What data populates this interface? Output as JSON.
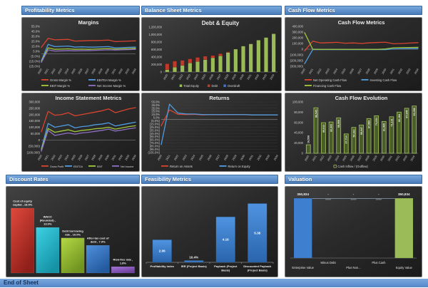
{
  "sections": {
    "profitability": {
      "title": "Profitability Metrics"
    },
    "balance": {
      "title": "Balance Sheet Metrics"
    },
    "cashflow": {
      "title": "Cash Flow Metrics"
    },
    "discount": {
      "title": "Discount Rates"
    },
    "feasibility": {
      "title": "Feasibility Metrics"
    },
    "valuation": {
      "title": "Valuation"
    }
  },
  "footer": {
    "label": "End of Sheet"
  },
  "colors": {
    "header_blue": "#4a7cba",
    "footer_blue": "#5586c7",
    "panel_bg": "#2b2b2b",
    "series_red": "#d9442f",
    "series_blue": "#4f9ce0",
    "series_green": "#9bbb59",
    "series_purple": "#8f6fc4"
  },
  "chart_data": [
    {
      "id": "margins",
      "type": "line",
      "title": "Margins",
      "x": [
        "2020",
        "2021",
        "2022",
        "2023",
        "2024",
        "2025",
        "2026",
        "2027",
        "2028",
        "2029",
        "2030",
        "2031",
        "2032",
        "2033",
        "2034"
      ],
      "yticks": [
        "55.0%",
        "45.0%",
        "35.0%",
        "25.0%",
        "15.0%",
        "5.0%",
        "(5.0%)",
        "(15.0%)",
        "(25.0%)"
      ],
      "ymax": 55,
      "ymin": -25,
      "legend_cols": 2,
      "series": [
        {
          "name": "Gross Margin %",
          "color": "#d9442f",
          "values": [
            13,
            31,
            28,
            28.5,
            29,
            25.5,
            26,
            26.5,
            26.5,
            27,
            27.5,
            24.5,
            25,
            25.5,
            26
          ]
        },
        {
          "name": "EBITDA Margin %",
          "color": "#4f9ce0",
          "values": [
            -14,
            19,
            14.5,
            15,
            15.5,
            13.5,
            14,
            13.5,
            13.5,
            14,
            14.5,
            12,
            12.5,
            13,
            13.5
          ]
        },
        {
          "name": "EBIT Margin %",
          "color": "#a2c83c",
          "values": [
            -16,
            12,
            9,
            9.5,
            10,
            9,
            9.5,
            9,
            9.5,
            10,
            10.5,
            9.5,
            10,
            10.5,
            11
          ]
        },
        {
          "name": "Net Income Margin %",
          "color": "#8f6fc4",
          "values": [
            -17,
            8,
            5.5,
            6,
            6.5,
            6,
            6.5,
            6.5,
            7,
            7.5,
            8,
            7.5,
            8,
            8.5,
            9
          ]
        }
      ]
    },
    {
      "id": "debt_equity",
      "type": "stacked-bar",
      "title": "Debt & Equity",
      "x": [
        "2020",
        "2021",
        "2022",
        "2023",
        "2024",
        "2025",
        "2026",
        "2027",
        "2028",
        "2029",
        "2030",
        "2031",
        "2032",
        "2033",
        "2034"
      ],
      "yticks": [
        "1,200,000",
        "1,000,000",
        "800,000",
        "600,000",
        "400,000",
        "200,000",
        "0"
      ],
      "ymax": 1200000,
      "ymin": 0,
      "series": [
        {
          "name": "Total Equity",
          "color": "#9bbb59",
          "values": [
            60000,
            130000,
            175000,
            240000,
            280000,
            330000,
            380000,
            430000,
            520000,
            610000,
            690000,
            750000,
            850000,
            920000,
            1020000
          ]
        },
        {
          "name": "Debt",
          "color": "#c0392b",
          "values": [
            160000,
            160000,
            135000,
            110000,
            110000,
            90000,
            60000,
            60000,
            20000,
            0,
            0,
            0,
            0,
            0,
            0
          ]
        },
        {
          "name": "Overdraft",
          "color": "#4472c4",
          "values": [
            0,
            0,
            0,
            0,
            0,
            0,
            0,
            0,
            0,
            0,
            0,
            0,
            0,
            0,
            0
          ]
        }
      ]
    },
    {
      "id": "cfm",
      "type": "line",
      "title": "Cash Flow Metrics",
      "x": [
        "2020",
        "2021",
        "2022",
        "2023",
        "2024",
        "2025",
        "2026",
        "2027",
        "2028",
        "2029",
        "2030",
        "2031",
        "2032",
        "2033",
        "2034"
      ],
      "yticks": [
        "400,000",
        "300,000",
        "200,000",
        "100,000",
        "0",
        "(100,000)",
        "(200,000)",
        "(300,000)"
      ],
      "ymax": 400000,
      "ymin": -300000,
      "legend_cols": 2,
      "series": [
        {
          "name": "Net Operating Cash Flow",
          "color": "#d9442f",
          "values": [
            -30000,
            140000,
            110000,
            115000,
            120000,
            105000,
            110000,
            100000,
            112000,
            118000,
            122000,
            95000,
            100000,
            108000,
            115000
          ]
        },
        {
          "name": "Investing Cash Flow",
          "color": "#4f9ce0",
          "values": [
            -255000,
            -8000,
            -8000,
            -8000,
            -8000,
            -8000,
            -8000,
            -8000,
            -8000,
            -8000,
            -8000,
            5000,
            8000,
            10000,
            12000
          ]
        },
        {
          "name": "Financing Cash Flow",
          "color": "#a2c83c",
          "values": [
            290000,
            0,
            -3000,
            -3000,
            -3000,
            -3000,
            -3000,
            -3000,
            -3000,
            -3000,
            5000,
            25000,
            28000,
            30000,
            32000
          ]
        }
      ]
    },
    {
      "id": "income",
      "type": "line",
      "title": "Income Statement Metrics",
      "x": [
        "2020",
        "2021",
        "2022",
        "2023",
        "2024",
        "2025",
        "2026",
        "2027",
        "2028",
        "2029",
        "2030",
        "2031",
        "2032",
        "2033",
        "2034"
      ],
      "yticks": [
        "300,000",
        "250,000",
        "200,000",
        "150,000",
        "100,000",
        "50,000",
        "0",
        "(50,000)",
        "(100,000)"
      ],
      "ymax": 300000,
      "ymin": -100000,
      "legend_cols": 4,
      "series": [
        {
          "name": "Gross Profit",
          "color": "#d9442f",
          "values": [
            65000,
            225000,
            195000,
            200000,
            215000,
            190000,
            200000,
            210000,
            220000,
            230000,
            245000,
            215000,
            230000,
            245000,
            255000
          ]
        },
        {
          "name": "EBITDA",
          "color": "#4f9ce0",
          "values": [
            -70000,
            130000,
            100000,
            110000,
            120000,
            95000,
            105000,
            110000,
            120000,
            125000,
            135000,
            110000,
            120000,
            130000,
            140000
          ]
        },
        {
          "name": "EBIT",
          "color": "#a2c83c",
          "values": [
            -80000,
            90000,
            60000,
            70000,
            80000,
            65000,
            75000,
            80000,
            88000,
            92000,
            100000,
            85000,
            95000,
            105000,
            112000
          ]
        },
        {
          "name": "Net Income",
          "color": "#8f6fc4",
          "values": [
            -90000,
            75000,
            35000,
            45000,
            55000,
            45000,
            55000,
            60000,
            68000,
            75000,
            85000,
            70000,
            78000,
            88000,
            95000
          ]
        }
      ]
    },
    {
      "id": "returns",
      "type": "line",
      "title": "Returns",
      "grid": true,
      "x": [
        "2020",
        "2021",
        "2022",
        "2023",
        "2024",
        "2025",
        "2026",
        "2027",
        "2028",
        "2029",
        "2030",
        "2031",
        "2032",
        "2033",
        "2034"
      ],
      "yticks": [
        "55.0%",
        "45.0%",
        "35.0%",
        "25.0%",
        "15.0%",
        "5.0%",
        "(5.0%)",
        "(15.0%)",
        "(25.0%)",
        "(35.0%)",
        "(45.0%)",
        "(55.0%)",
        "(65.0%)",
        "(75.0%)",
        "(85.0%)",
        "(95.0%)",
        "(105.0%)"
      ],
      "ymax": 55,
      "ymin": -105,
      "legend_cols": 2,
      "series": [
        {
          "name": "Return on Assets",
          "color": "#d9442f",
          "values": [
            -20,
            30,
            16,
            15,
            16,
            14,
            15,
            14.5,
            15,
            15,
            15,
            14,
            14,
            14,
            14
          ]
        },
        {
          "name": "Return on Equity",
          "color": "#4f9ce0",
          "values": [
            -80,
            48,
            20,
            17,
            17,
            15,
            15,
            15,
            15,
            15,
            15,
            14,
            14,
            14,
            14
          ]
        }
      ]
    },
    {
      "id": "cfe",
      "type": "bar",
      "title": "Cash Flow Evolution",
      "x": [
        "2020",
        "2021",
        "2022",
        "2023",
        "2024",
        "2025",
        "2026",
        "2027",
        "2028",
        "2029",
        "2030",
        "2031",
        "2032",
        "2033",
        "2034"
      ],
      "yticks": [
        "100,000",
        "80,000",
        "60,000",
        "40,000",
        "20,000",
        "0"
      ],
      "ymax": 100000,
      "ymin": 0,
      "legend": "Cash Inflow / (Outflow)",
      "bar_color": "#4a5c28",
      "bar_stroke": "#9bbb59",
      "values": [
        16536,
        88545,
        59513,
        60900,
        68968,
        37714,
        50361,
        55047,
        67589,
        73031,
        61965,
        71131,
        80184,
        87645,
        92086
      ],
      "labels": [
        "16,536",
        "88,545",
        "59,513",
        "60,900",
        "68,968",
        "37,714",
        "50,361",
        "55,047",
        "67,589",
        "73,031",
        "61,965",
        "71,131",
        "80,184",
        "87,645",
        "92,086"
      ]
    },
    {
      "id": "discount",
      "type": "labeled-bar",
      "ymax": 18.5,
      "bars": [
        {
          "label_lines": [
            "Cost of equity",
            "capital , 18.5%"
          ],
          "value": 18.5,
          "color": "#e0493c",
          "color2": "#8f1f1a"
        },
        {
          "label_lines": [
            "WACC",
            "(Rounded) ,",
            "13.0%"
          ],
          "value": 13.0,
          "color": "#3ed0e4",
          "color2": "#1593a5"
        },
        {
          "label_lines": [
            "Debt borrowing",
            "rate , 10.0%"
          ],
          "value": 10.0,
          "color": "#b4d844",
          "color2": "#6f9420"
        },
        {
          "label_lines": [
            "After-tax cost of",
            "debt , 7.9%"
          ],
          "value": 7.9,
          "color": "#4f8fdc",
          "color2": "#235a9e"
        },
        {
          "label_lines": [
            "Risk-free rate ,",
            "1.8%"
          ],
          "value": 1.8,
          "color": "#a873de",
          "color2": "#6b3f99"
        }
      ]
    },
    {
      "id": "feasibility",
      "type": "value-bar",
      "ymax": 6,
      "bar_color_top": "#4f93e0",
      "bar_color_bottom": "#2a65ad",
      "bars": [
        {
          "label_lines": [
            "Profitability Index"
          ],
          "value": 2.06,
          "value_label": "2.06",
          "label_pos": "inside"
        },
        {
          "label_lines": [
            "IRR (Project Basis)"
          ],
          "value": 0.164,
          "value_label": "16.4%",
          "label_pos": "above"
        },
        {
          "label_lines": [
            "Payback  (Project",
            "Basis)"
          ],
          "value": 4.16,
          "value_label": "4.16",
          "label_pos": "inside"
        },
        {
          "label_lines": [
            "Discounted Payback",
            "(Project Basis)"
          ],
          "value": 5.38,
          "value_label": "5.38",
          "label_pos": "inside"
        }
      ]
    },
    {
      "id": "valuation",
      "type": "waterfall",
      "bars": [
        {
          "label": "Enterprise Value",
          "value_label": "350,834",
          "height": 1,
          "color": "#3f7fd0",
          "label_row": "low"
        },
        {
          "label": "Minus Debt",
          "value_label": "-",
          "height": 0,
          "label_row": "high"
        },
        {
          "label": "Plus Non...",
          "value_label": "-",
          "height": 0,
          "label_row": "low"
        },
        {
          "label": "Plus Cash",
          "value_label": "-",
          "height": 0,
          "label_row": "high"
        },
        {
          "label": "Equity Value",
          "value_label": "350,834",
          "height": 1,
          "color": "#9bbb59",
          "label_row": "low"
        }
      ]
    }
  ]
}
